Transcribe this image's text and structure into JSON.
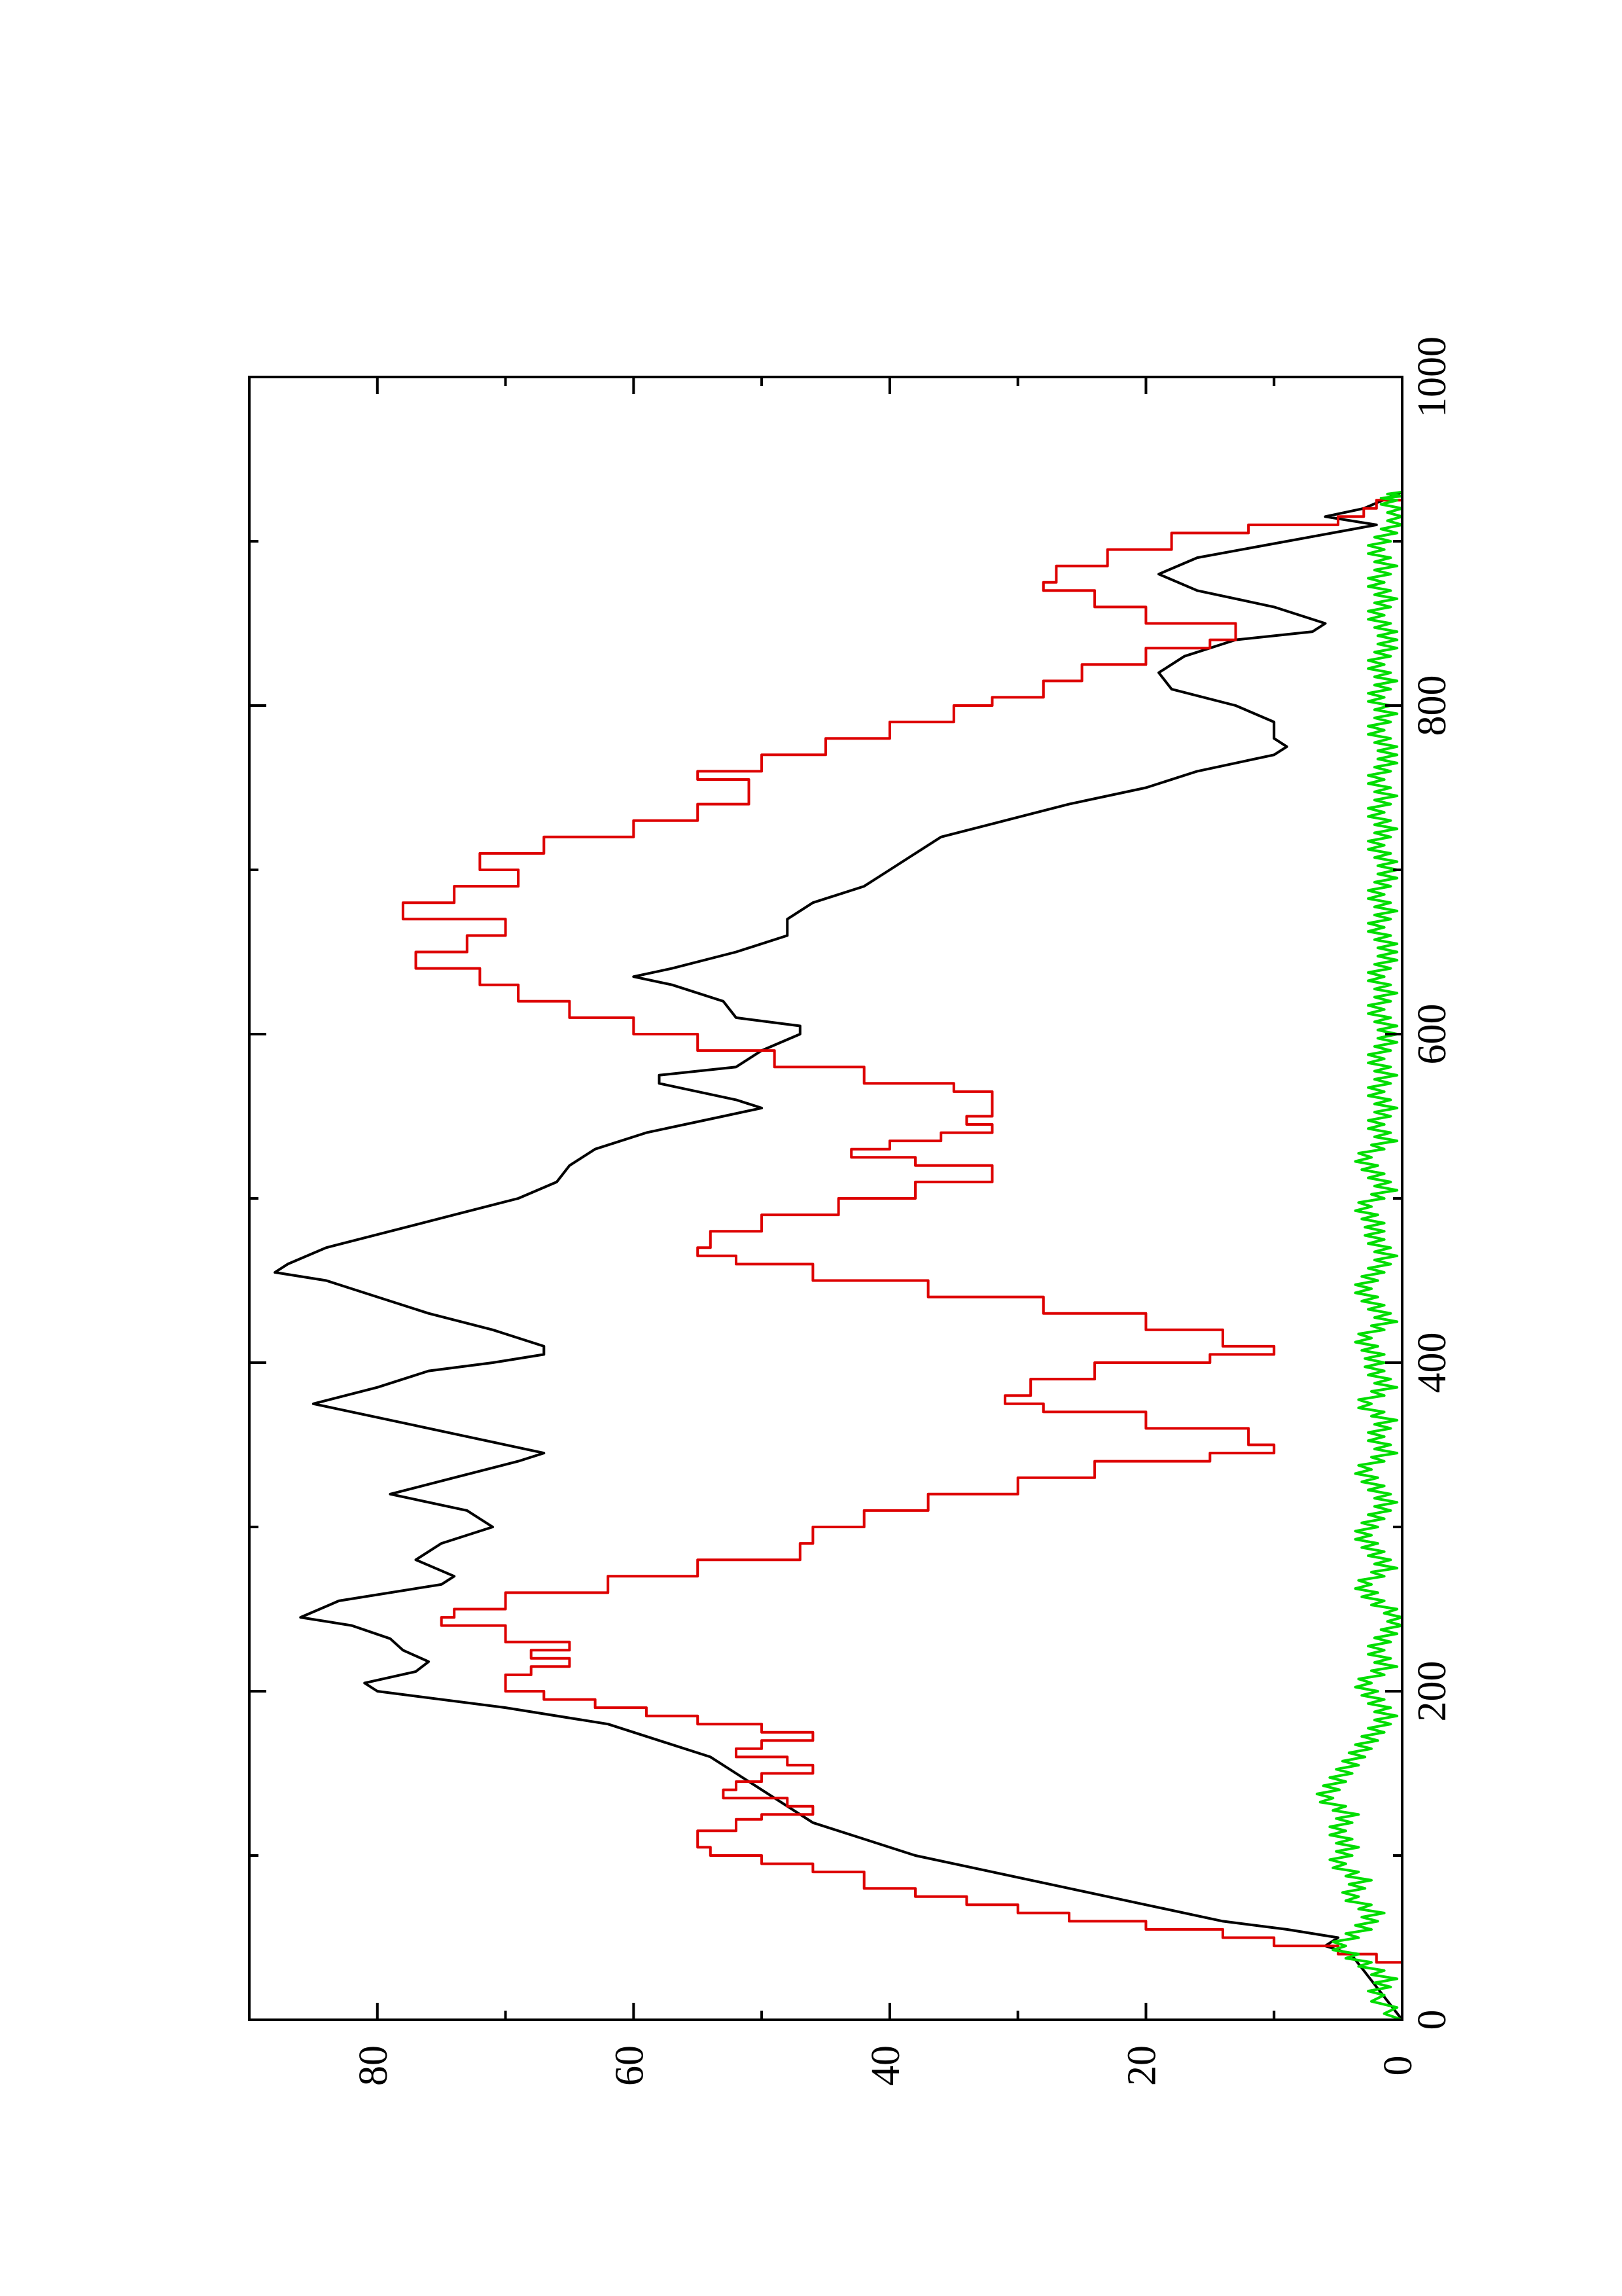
{
  "chart_data": {
    "type": "line",
    "orientation": "rotated-90-ccw",
    "title": "",
    "xlabel": "",
    "ylabel": "",
    "xlim": [
      0,
      1000
    ],
    "ylim": [
      0,
      90
    ],
    "x_ticks": [
      0,
      200,
      400,
      600,
      800,
      1000
    ],
    "x_minor_ticks": [
      100,
      300,
      500,
      700,
      900
    ],
    "y_ticks": [
      0,
      20,
      40,
      60,
      80
    ],
    "y_minor_ticks": [
      10,
      30,
      50,
      70
    ],
    "grid": false,
    "legend": "none",
    "series": [
      {
        "color": "#000000",
        "style": "line",
        "points": [
          [
            0,
            0
          ],
          [
            10,
            1
          ],
          [
            20,
            2
          ],
          [
            30,
            3
          ],
          [
            40,
            4
          ],
          [
            45,
            6
          ],
          [
            50,
            5
          ],
          [
            55,
            9
          ],
          [
            60,
            14
          ],
          [
            70,
            20
          ],
          [
            80,
            26
          ],
          [
            90,
            32
          ],
          [
            100,
            38
          ],
          [
            110,
            42
          ],
          [
            120,
            46
          ],
          [
            130,
            48
          ],
          [
            140,
            50
          ],
          [
            150,
            52
          ],
          [
            160,
            54
          ],
          [
            170,
            58
          ],
          [
            180,
            62
          ],
          [
            190,
            70
          ],
          [
            200,
            80
          ],
          [
            205,
            81
          ],
          [
            212,
            77
          ],
          [
            218,
            76
          ],
          [
            225,
            78
          ],
          [
            232,
            79
          ],
          [
            240,
            82
          ],
          [
            245,
            86
          ],
          [
            255,
            83
          ],
          [
            265,
            75
          ],
          [
            270,
            74
          ],
          [
            280,
            77
          ],
          [
            290,
            75
          ],
          [
            300,
            71
          ],
          [
            310,
            73
          ],
          [
            320,
            79
          ],
          [
            330,
            74
          ],
          [
            340,
            69
          ],
          [
            345,
            67
          ],
          [
            355,
            73
          ],
          [
            365,
            79
          ],
          [
            375,
            85
          ],
          [
            385,
            80
          ],
          [
            395,
            76
          ],
          [
            400,
            71
          ],
          [
            405,
            67
          ],
          [
            410,
            67
          ],
          [
            420,
            71
          ],
          [
            430,
            76
          ],
          [
            440,
            80
          ],
          [
            450,
            84
          ],
          [
            455,
            88
          ],
          [
            460,
            87
          ],
          [
            470,
            84
          ],
          [
            480,
            79
          ],
          [
            490,
            74
          ],
          [
            500,
            69
          ],
          [
            510,
            66
          ],
          [
            520,
            65
          ],
          [
            530,
            63
          ],
          [
            540,
            59
          ],
          [
            550,
            53
          ],
          [
            555,
            50
          ],
          [
            560,
            52
          ],
          [
            570,
            58
          ],
          [
            575,
            58
          ],
          [
            580,
            52
          ],
          [
            590,
            50
          ],
          [
            600,
            47
          ],
          [
            605,
            47
          ],
          [
            610,
            52
          ],
          [
            620,
            53
          ],
          [
            630,
            57
          ],
          [
            635,
            60
          ],
          [
            640,
            57
          ],
          [
            650,
            52
          ],
          [
            660,
            48
          ],
          [
            670,
            48
          ],
          [
            680,
            46
          ],
          [
            690,
            42
          ],
          [
            700,
            40
          ],
          [
            710,
            38
          ],
          [
            720,
            36
          ],
          [
            730,
            31
          ],
          [
            740,
            26
          ],
          [
            750,
            20
          ],
          [
            760,
            16
          ],
          [
            770,
            10
          ],
          [
            775,
            9
          ],
          [
            780,
            10
          ],
          [
            790,
            10
          ],
          [
            800,
            13
          ],
          [
            810,
            18
          ],
          [
            820,
            19
          ],
          [
            830,
            17
          ],
          [
            840,
            13
          ],
          [
            845,
            7
          ],
          [
            850,
            6
          ],
          [
            860,
            10
          ],
          [
            870,
            16
          ],
          [
            880,
            19
          ],
          [
            890,
            16
          ],
          [
            900,
            9
          ],
          [
            910,
            2
          ],
          [
            915,
            6
          ],
          [
            920,
            3
          ],
          [
            930,
            0
          ]
        ]
      },
      {
        "color": "#dd0000",
        "style": "step",
        "points": [
          [
            0,
            0
          ],
          [
            35,
            0
          ],
          [
            35,
            2
          ],
          [
            40,
            5
          ],
          [
            45,
            10
          ],
          [
            50,
            14
          ],
          [
            55,
            20
          ],
          [
            60,
            26
          ],
          [
            65,
            30
          ],
          [
            70,
            34
          ],
          [
            75,
            38
          ],
          [
            80,
            42
          ],
          [
            90,
            46
          ],
          [
            95,
            50
          ],
          [
            100,
            54
          ],
          [
            105,
            55
          ],
          [
            115,
            52
          ],
          [
            122,
            50
          ],
          [
            125,
            46
          ],
          [
            130,
            48
          ],
          [
            135,
            53
          ],
          [
            140,
            52
          ],
          [
            145,
            50
          ],
          [
            150,
            46
          ],
          [
            155,
            48
          ],
          [
            160,
            52
          ],
          [
            165,
            50
          ],
          [
            170,
            46
          ],
          [
            175,
            50
          ],
          [
            180,
            55
          ],
          [
            185,
            59
          ],
          [
            190,
            63
          ],
          [
            195,
            67
          ],
          [
            200,
            70
          ],
          [
            205,
            70
          ],
          [
            210,
            68
          ],
          [
            215,
            65
          ],
          [
            220,
            68
          ],
          [
            225,
            65
          ],
          [
            230,
            70
          ],
          [
            240,
            75
          ],
          [
            245,
            74
          ],
          [
            250,
            70
          ],
          [
            260,
            62
          ],
          [
            270,
            55
          ],
          [
            280,
            47
          ],
          [
            290,
            46
          ],
          [
            300,
            42
          ],
          [
            310,
            37
          ],
          [
            320,
            30
          ],
          [
            330,
            24
          ],
          [
            340,
            15
          ],
          [
            345,
            10
          ],
          [
            350,
            12
          ],
          [
            360,
            20
          ],
          [
            370,
            28
          ],
          [
            375,
            31
          ],
          [
            380,
            29
          ],
          [
            390,
            24
          ],
          [
            400,
            15
          ],
          [
            405,
            10
          ],
          [
            410,
            14
          ],
          [
            420,
            20
          ],
          [
            430,
            28
          ],
          [
            440,
            37
          ],
          [
            450,
            46
          ],
          [
            460,
            52
          ],
          [
            465,
            55
          ],
          [
            470,
            54
          ],
          [
            480,
            50
          ],
          [
            490,
            44
          ],
          [
            500,
            38
          ],
          [
            510,
            32
          ],
          [
            515,
            32
          ],
          [
            520,
            38
          ],
          [
            525,
            43
          ],
          [
            530,
            40
          ],
          [
            535,
            36
          ],
          [
            540,
            32
          ],
          [
            545,
            34
          ],
          [
            550,
            32
          ],
          [
            560,
            32
          ],
          [
            565,
            35
          ],
          [
            570,
            42
          ],
          [
            580,
            49
          ],
          [
            590,
            55
          ],
          [
            600,
            60
          ],
          [
            610,
            65
          ],
          [
            620,
            69
          ],
          [
            630,
            72
          ],
          [
            640,
            77
          ],
          [
            650,
            73
          ],
          [
            660,
            70
          ],
          [
            670,
            78
          ],
          [
            680,
            74
          ],
          [
            690,
            69
          ],
          [
            700,
            72
          ],
          [
            710,
            67
          ],
          [
            720,
            60
          ],
          [
            730,
            55
          ],
          [
            740,
            51
          ],
          [
            750,
            51
          ],
          [
            755,
            55
          ],
          [
            760,
            50
          ],
          [
            770,
            45
          ],
          [
            780,
            40
          ],
          [
            790,
            35
          ],
          [
            800,
            32
          ],
          [
            805,
            28
          ],
          [
            815,
            25
          ],
          [
            825,
            20
          ],
          [
            835,
            15
          ],
          [
            840,
            13
          ],
          [
            850,
            20
          ],
          [
            860,
            24
          ],
          [
            870,
            28
          ],
          [
            875,
            27
          ],
          [
            885,
            23
          ],
          [
            895,
            18
          ],
          [
            905,
            12
          ],
          [
            910,
            5
          ],
          [
            915,
            3
          ],
          [
            920,
            2
          ],
          [
            925,
            0
          ],
          [
            930,
            0
          ]
        ]
      },
      {
        "color": "#00dd00",
        "style": "noise",
        "points": [
          [
            0,
            0
          ],
          [
            15,
            2
          ],
          [
            25,
            1
          ],
          [
            35,
            3
          ],
          [
            45,
            5
          ],
          [
            55,
            3
          ],
          [
            65,
            2
          ],
          [
            75,
            4
          ],
          [
            85,
            3
          ],
          [
            95,
            5
          ],
          [
            105,
            4
          ],
          [
            115,
            5
          ],
          [
            125,
            4
          ],
          [
            135,
            6
          ],
          [
            145,
            5
          ],
          [
            155,
            4
          ],
          [
            165,
            3
          ],
          [
            175,
            2
          ],
          [
            185,
            1
          ],
          [
            195,
            2
          ],
          [
            205,
            3
          ],
          [
            215,
            1
          ],
          [
            225,
            2
          ],
          [
            235,
            1
          ],
          [
            245,
            0
          ],
          [
            255,
            2
          ],
          [
            265,
            3
          ],
          [
            275,
            1
          ],
          [
            285,
            2
          ],
          [
            295,
            3
          ],
          [
            305,
            2
          ],
          [
            315,
            1
          ],
          [
            325,
            2
          ],
          [
            335,
            3
          ],
          [
            345,
            1
          ],
          [
            355,
            2
          ],
          [
            365,
            1
          ],
          [
            375,
            3
          ],
          [
            385,
            1
          ],
          [
            395,
            2
          ],
          [
            405,
            2
          ],
          [
            415,
            3
          ],
          [
            425,
            1
          ],
          [
            435,
            2
          ],
          [
            445,
            3
          ],
          [
            455,
            2
          ],
          [
            465,
            1
          ],
          [
            475,
            2
          ],
          [
            485,
            2
          ],
          [
            495,
            3
          ],
          [
            505,
            1
          ],
          [
            515,
            2
          ],
          [
            525,
            3
          ],
          [
            535,
            1
          ],
          [
            545,
            2
          ],
          [
            555,
            1
          ],
          [
            565,
            2
          ],
          [
            575,
            1
          ],
          [
            585,
            2
          ],
          [
            595,
            1
          ],
          [
            605,
            1
          ],
          [
            615,
            2
          ],
          [
            625,
            1
          ],
          [
            635,
            2
          ],
          [
            645,
            1
          ],
          [
            655,
            1
          ],
          [
            665,
            2
          ],
          [
            675,
            1
          ],
          [
            685,
            2
          ],
          [
            695,
            1
          ],
          [
            705,
            1
          ],
          [
            715,
            2
          ],
          [
            725,
            1
          ],
          [
            735,
            2
          ],
          [
            745,
            1
          ],
          [
            755,
            2
          ],
          [
            765,
            1
          ],
          [
            775,
            1
          ],
          [
            785,
            2
          ],
          [
            795,
            1
          ],
          [
            805,
            2
          ],
          [
            815,
            1
          ],
          [
            825,
            2
          ],
          [
            835,
            1
          ],
          [
            845,
            1
          ],
          [
            855,
            2
          ],
          [
            865,
            1
          ],
          [
            875,
            2
          ],
          [
            885,
            1
          ],
          [
            895,
            2
          ],
          [
            905,
            1
          ],
          [
            915,
            0
          ],
          [
            925,
            1
          ],
          [
            930,
            0
          ]
        ]
      }
    ]
  }
}
